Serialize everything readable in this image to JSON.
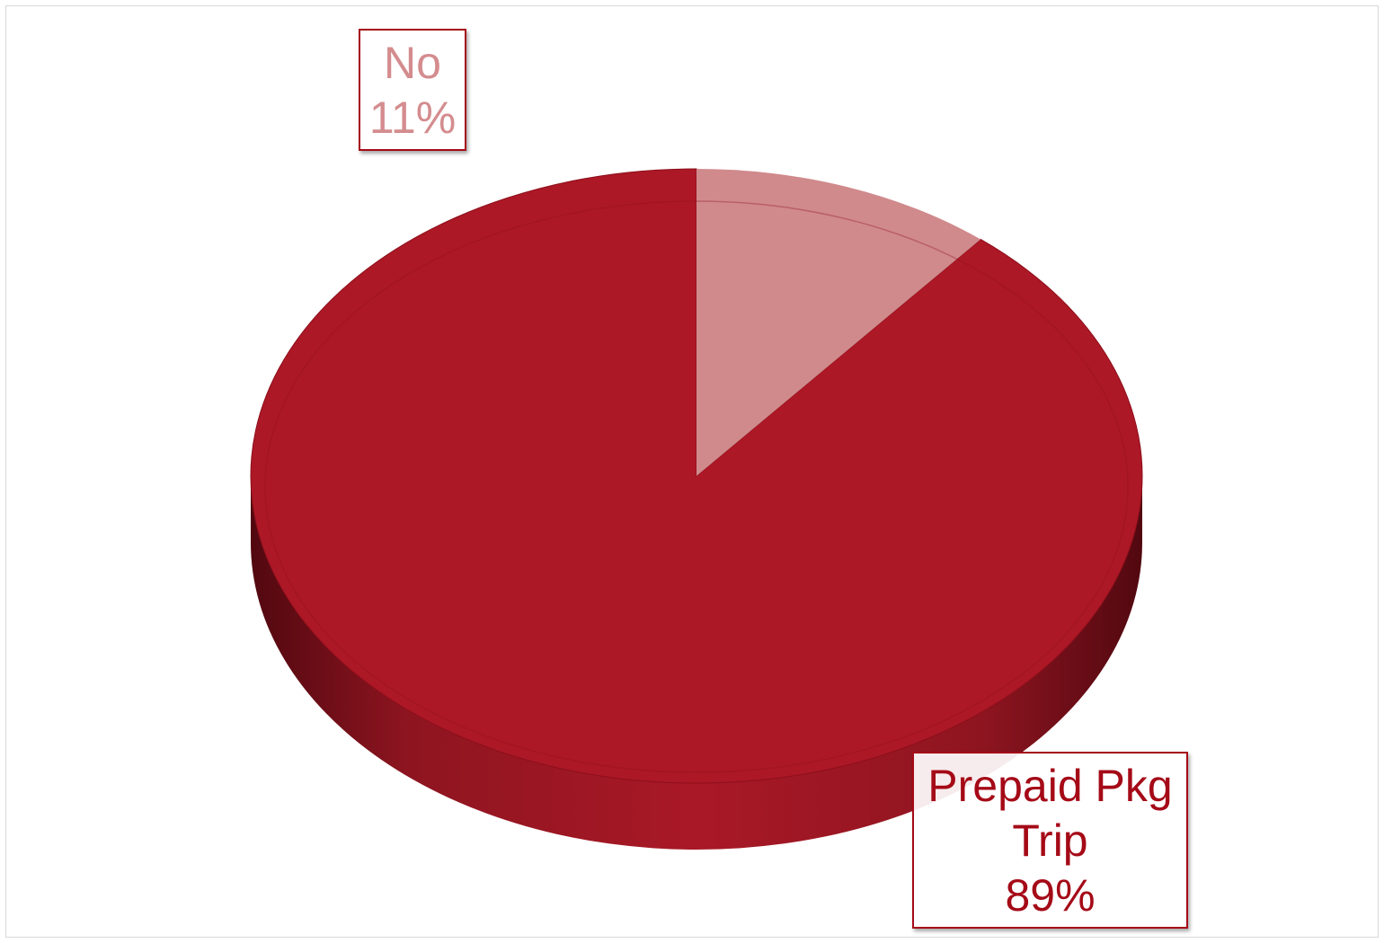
{
  "chart_data": {
    "type": "pie",
    "style": "3d",
    "title": "",
    "slices": [
      {
        "name": "Prepaid Pkg Trip",
        "value": 89,
        "label_lines": [
          "Prepaid Pkg",
          "Trip",
          "89%"
        ],
        "color": "#ad1826"
      },
      {
        "name": "No",
        "value": 11,
        "label_lines": [
          "No",
          "11%"
        ],
        "color": "#d08a8c"
      }
    ],
    "legend": "none",
    "colors": {
      "accent": "#ad1826",
      "accent_dark": "#a50a17",
      "secondary": "#d08a8c",
      "label_no_text": "#d48c8e"
    }
  }
}
